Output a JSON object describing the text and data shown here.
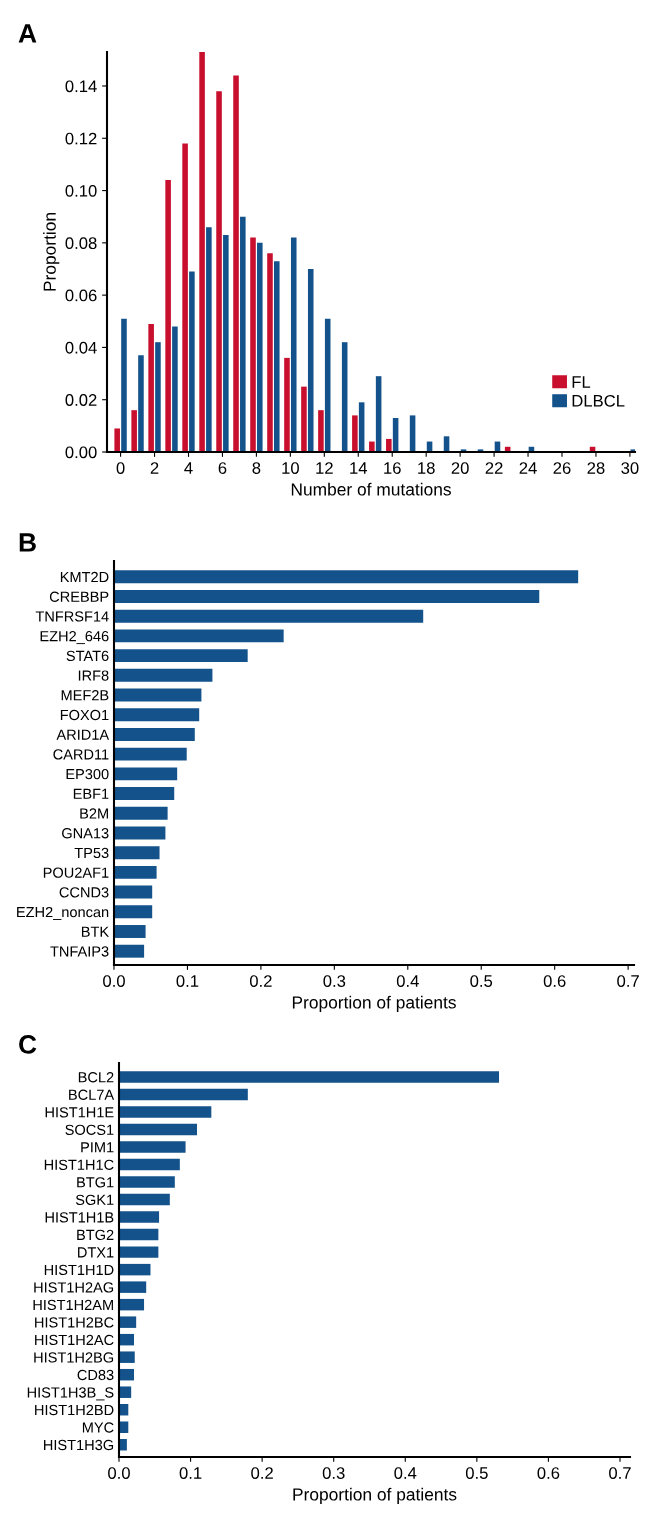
{
  "chart_data": [
    {
      "type": "bar",
      "title": "A",
      "xlabel": "Number of mutations",
      "ylabel": "Proportion",
      "x": [
        0,
        1,
        2,
        3,
        4,
        5,
        6,
        7,
        8,
        9,
        10,
        11,
        12,
        13,
        14,
        15,
        16,
        17,
        18,
        19,
        20,
        21,
        22,
        23,
        24,
        25,
        26,
        27,
        28,
        29,
        30
      ],
      "series": [
        {
          "name": "FL",
          "color": "#c8102e",
          "values": [
            0.009,
            0.016,
            0.049,
            0.104,
            0.118,
            0.153,
            0.138,
            0.144,
            0.082,
            0.076,
            0.036,
            0.025,
            0.016,
            0,
            0.014,
            0.004,
            0.005,
            0,
            0,
            0,
            0,
            0,
            0,
            0.002,
            0,
            0,
            0,
            0,
            0.002,
            0,
            0
          ]
        },
        {
          "name": "DLBCL",
          "color": "#13528a",
          "values": [
            0.051,
            0.037,
            0.042,
            0.048,
            0.069,
            0.086,
            0.083,
            0.09,
            0.08,
            0.073,
            0.082,
            0.07,
            0.051,
            0.042,
            0.019,
            0.029,
            0.013,
            0.014,
            0.004,
            0.006,
            0.001,
            0.001,
            0.004,
            0,
            0.002,
            0,
            0,
            0,
            0,
            0,
            0.001
          ]
        }
      ],
      "xlim": [
        -0.8,
        30.3
      ],
      "xticks": [
        0,
        2,
        4,
        6,
        8,
        10,
        12,
        14,
        16,
        18,
        20,
        22,
        24,
        26,
        28,
        30
      ],
      "ylim": [
        0,
        0.153
      ],
      "yticks": [
        {
          "value": 0,
          "label": "0.00"
        },
        {
          "value": 0.02,
          "label": "0.02"
        },
        {
          "value": 0.04,
          "label": "0.04"
        },
        {
          "value": 0.06,
          "label": "0.06"
        },
        {
          "value": 0.08,
          "label": "0.08"
        },
        {
          "value": 0.1,
          "label": "0.10"
        },
        {
          "value": 0.12,
          "label": "0.12"
        },
        {
          "value": 0.14,
          "label": "0.14"
        }
      ],
      "legend": "lower right",
      "grid": false
    },
    {
      "type": "bar",
      "orientation": "horizontal",
      "title": "B",
      "xlabel": "Proportion of patients",
      "categories": [
        "KMT2D",
        "CREBBP",
        "TNFRSF14",
        "EZH2_646",
        "STAT6",
        "IRF8",
        "MEF2B",
        "FOXO1",
        "ARID1A",
        "CARD11",
        "EP300",
        "EBF1",
        "B2M",
        "GNA13",
        "TP53",
        "POU2AF1",
        "CCND3",
        "EZH2_noncan",
        "BTK",
        "TNFAIP3"
      ],
      "values": [
        0.632,
        0.579,
        0.421,
        0.231,
        0.182,
        0.134,
        0.119,
        0.116,
        0.11,
        0.099,
        0.086,
        0.082,
        0.073,
        0.07,
        0.062,
        0.058,
        0.052,
        0.052,
        0.043,
        0.041
      ],
      "color": "#13528a",
      "xlim": [
        0,
        0.708
      ],
      "xticks": [
        {
          "value": 0,
          "label": "0.0"
        },
        0.1,
        0.2,
        0.3,
        0.4,
        0.5,
        0.6,
        0.7
      ],
      "grid": false
    },
    {
      "type": "bar",
      "orientation": "horizontal",
      "title": "C",
      "xlabel": "Proportion of patients",
      "categories": [
        "BCL2",
        "BCL7A",
        "HIST1H1E",
        "SOCS1",
        "PIM1",
        "HIST1H1C",
        "BTG1",
        "SGK1",
        "HIST1H1B",
        "BTG2",
        "DTX1",
        "HIST1H1D",
        "HIST1H2AG",
        "HIST1H2AM",
        "HIST1H2BC",
        "HIST1H2AC",
        "HIST1H2BG",
        "CD83",
        "HIST1H3B_S",
        "HIST1H2BD",
        "MYC",
        "HIST1H3G"
      ],
      "values": [
        0.531,
        0.18,
        0.129,
        0.109,
        0.093,
        0.085,
        0.078,
        0.071,
        0.056,
        0.055,
        0.055,
        0.044,
        0.038,
        0.035,
        0.024,
        0.021,
        0.022,
        0.021,
        0.017,
        0.013,
        0.013,
        0.011
      ],
      "color": "#13528a",
      "xlim": [
        0,
        0.714
      ],
      "xticks": [
        {
          "value": 0,
          "label": "0.0"
        },
        0.1,
        0.2,
        0.3,
        0.4,
        0.5,
        0.6,
        0.7
      ],
      "grid": false
    }
  ]
}
